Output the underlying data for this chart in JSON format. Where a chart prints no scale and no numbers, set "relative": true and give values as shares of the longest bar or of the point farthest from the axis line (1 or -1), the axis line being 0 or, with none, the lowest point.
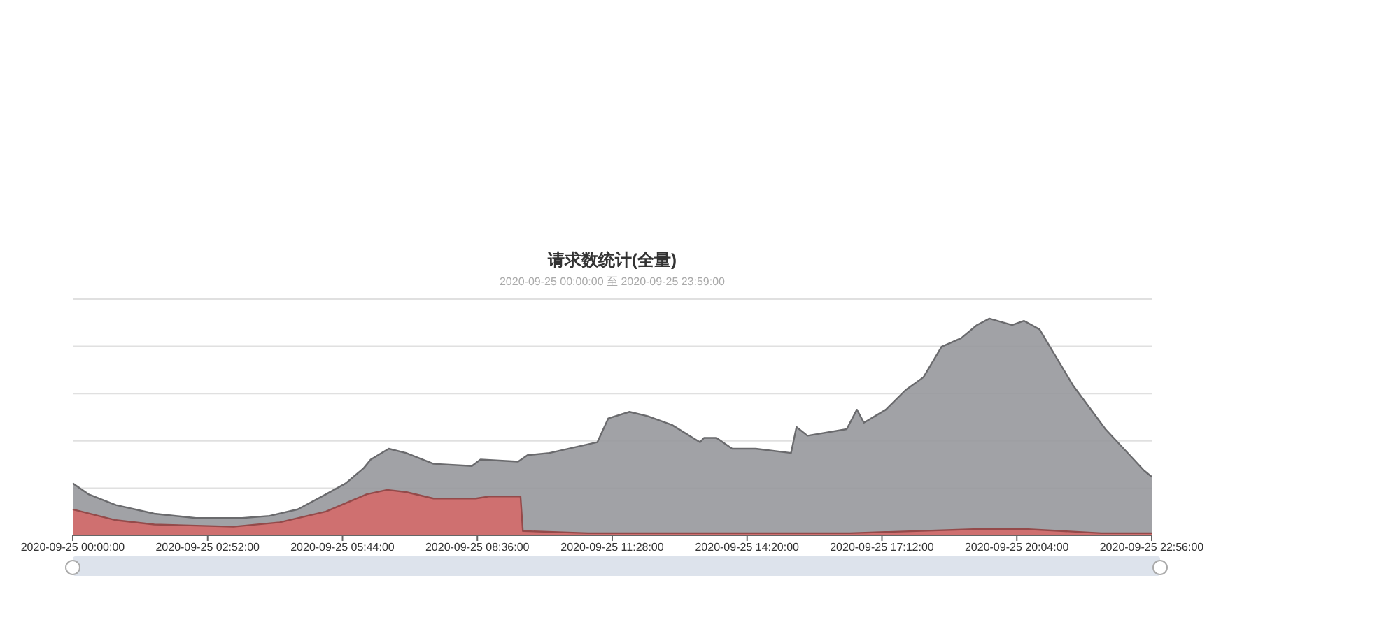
{
  "chart_data": {
    "type": "area",
    "title": "请求数统计(全量)",
    "subtitle": "2020-09-25 00:00:00 至 2020-09-25 23:59:00",
    "relative": true,
    "grid": true,
    "xlim": [
      "2020-09-25T00:00",
      "2020-09-25T22:56"
    ],
    "xticks": [
      {
        "value": "2020-09-25T00:00",
        "label": "2020-09-25 00:00:00"
      },
      {
        "value": "2020-09-25T02:52",
        "label": "2020-09-25 02:52:00"
      },
      {
        "value": "2020-09-25T05:44",
        "label": "2020-09-25 05:44:00"
      },
      {
        "value": "2020-09-25T08:36",
        "label": "2020-09-25 08:36:00"
      },
      {
        "value": "2020-09-25T11:28",
        "label": "2020-09-25 11:28:00"
      },
      {
        "value": "2020-09-25T14:20",
        "label": "2020-09-25 14:20:00"
      },
      {
        "value": "2020-09-25T17:12",
        "label": "2020-09-25 17:12:00"
      },
      {
        "value": "2020-09-25T20:04",
        "label": "2020-09-25 20:04:00"
      },
      {
        "value": "2020-09-25T22:56",
        "label": "2020-09-25 22:56:00"
      }
    ],
    "series": [
      {
        "color": "#97989c",
        "x": [
          "2020-09-25T00:00",
          "2020-09-25T00:20",
          "2020-09-25T00:55",
          "2020-09-25T01:44",
          "2020-09-25T02:37",
          "2020-09-25T03:36",
          "2020-09-25T04:11",
          "2020-09-25T04:47",
          "2020-09-25T05:23",
          "2020-09-25T05:48",
          "2020-09-25T06:11",
          "2020-09-25T06:20",
          "2020-09-25T06:43",
          "2020-09-25T07:05",
          "2020-09-25T07:40",
          "2020-09-25T08:29",
          "2020-09-25T08:40",
          "2020-09-25T09:28",
          "2020-09-25T09:40",
          "2020-09-25T10:08",
          "2020-09-25T11:09",
          "2020-09-25T11:23",
          "2020-09-25T11:50",
          "2020-09-25T12:13",
          "2020-09-25T12:44",
          "2020-09-25T13:20",
          "2020-09-25T13:25",
          "2020-09-25T13:41",
          "2020-09-25T14:01",
          "2020-09-25T14:31",
          "2020-09-25T15:16",
          "2020-09-25T15:23",
          "2020-09-25T15:37",
          "2020-09-25T16:27",
          "2020-09-25T16:40",
          "2020-09-25T16:49",
          "2020-09-25T17:17",
          "2020-09-25T17:42",
          "2020-09-25T18:05",
          "2020-09-25T18:28",
          "2020-09-25T18:53",
          "2020-09-25T19:13",
          "2020-09-25T19:29",
          "2020-09-25T19:58",
          "2020-09-25T20:13",
          "2020-09-25T20:33",
          "2020-09-25T21:16",
          "2020-09-25T21:57",
          "2020-09-25T22:28",
          "2020-09-25T22:46",
          "2020-09-25T22:56"
        ],
        "values": [
          0.24,
          0.19,
          0.14,
          0.1,
          0.08,
          0.08,
          0.09,
          0.12,
          0.19,
          0.24,
          0.31,
          0.35,
          0.4,
          0.38,
          0.33,
          0.32,
          0.35,
          0.34,
          0.37,
          0.38,
          0.43,
          0.54,
          0.57,
          0.55,
          0.51,
          0.43,
          0.45,
          0.45,
          0.4,
          0.4,
          0.38,
          0.5,
          0.46,
          0.49,
          0.58,
          0.52,
          0.58,
          0.67,
          0.73,
          0.87,
          0.91,
          0.97,
          1,
          0.97,
          0.99,
          0.95,
          0.69,
          0.49,
          0.37,
          0.3,
          0.27
        ]
      },
      {
        "color": "#d46a6a",
        "x": [
          "2020-09-25T00:00",
          "2020-09-25T00:55",
          "2020-09-25T01:44",
          "2020-09-25T03:25",
          "2020-09-25T04:24",
          "2020-09-25T05:23",
          "2020-09-25T06:15",
          "2020-09-25T06:41",
          "2020-09-25T07:05",
          "2020-09-25T07:40",
          "2020-09-25T08:34",
          "2020-09-25T08:52",
          "2020-09-25T09:31",
          "2020-09-25T09:34",
          "2020-09-25T10:57",
          "2020-09-25T16:31",
          "2020-09-25T19:22",
          "2020-09-25T20:10",
          "2020-09-25T21:52",
          "2020-09-25T22:56"
        ],
        "values": [
          0.12,
          0.07,
          0.05,
          0.04,
          0.06,
          0.11,
          0.19,
          0.21,
          0.2,
          0.17,
          0.17,
          0.18,
          0.18,
          0.02,
          0.01,
          0.01,
          0.03,
          0.03,
          0.01,
          0.01
        ]
      }
    ]
  }
}
